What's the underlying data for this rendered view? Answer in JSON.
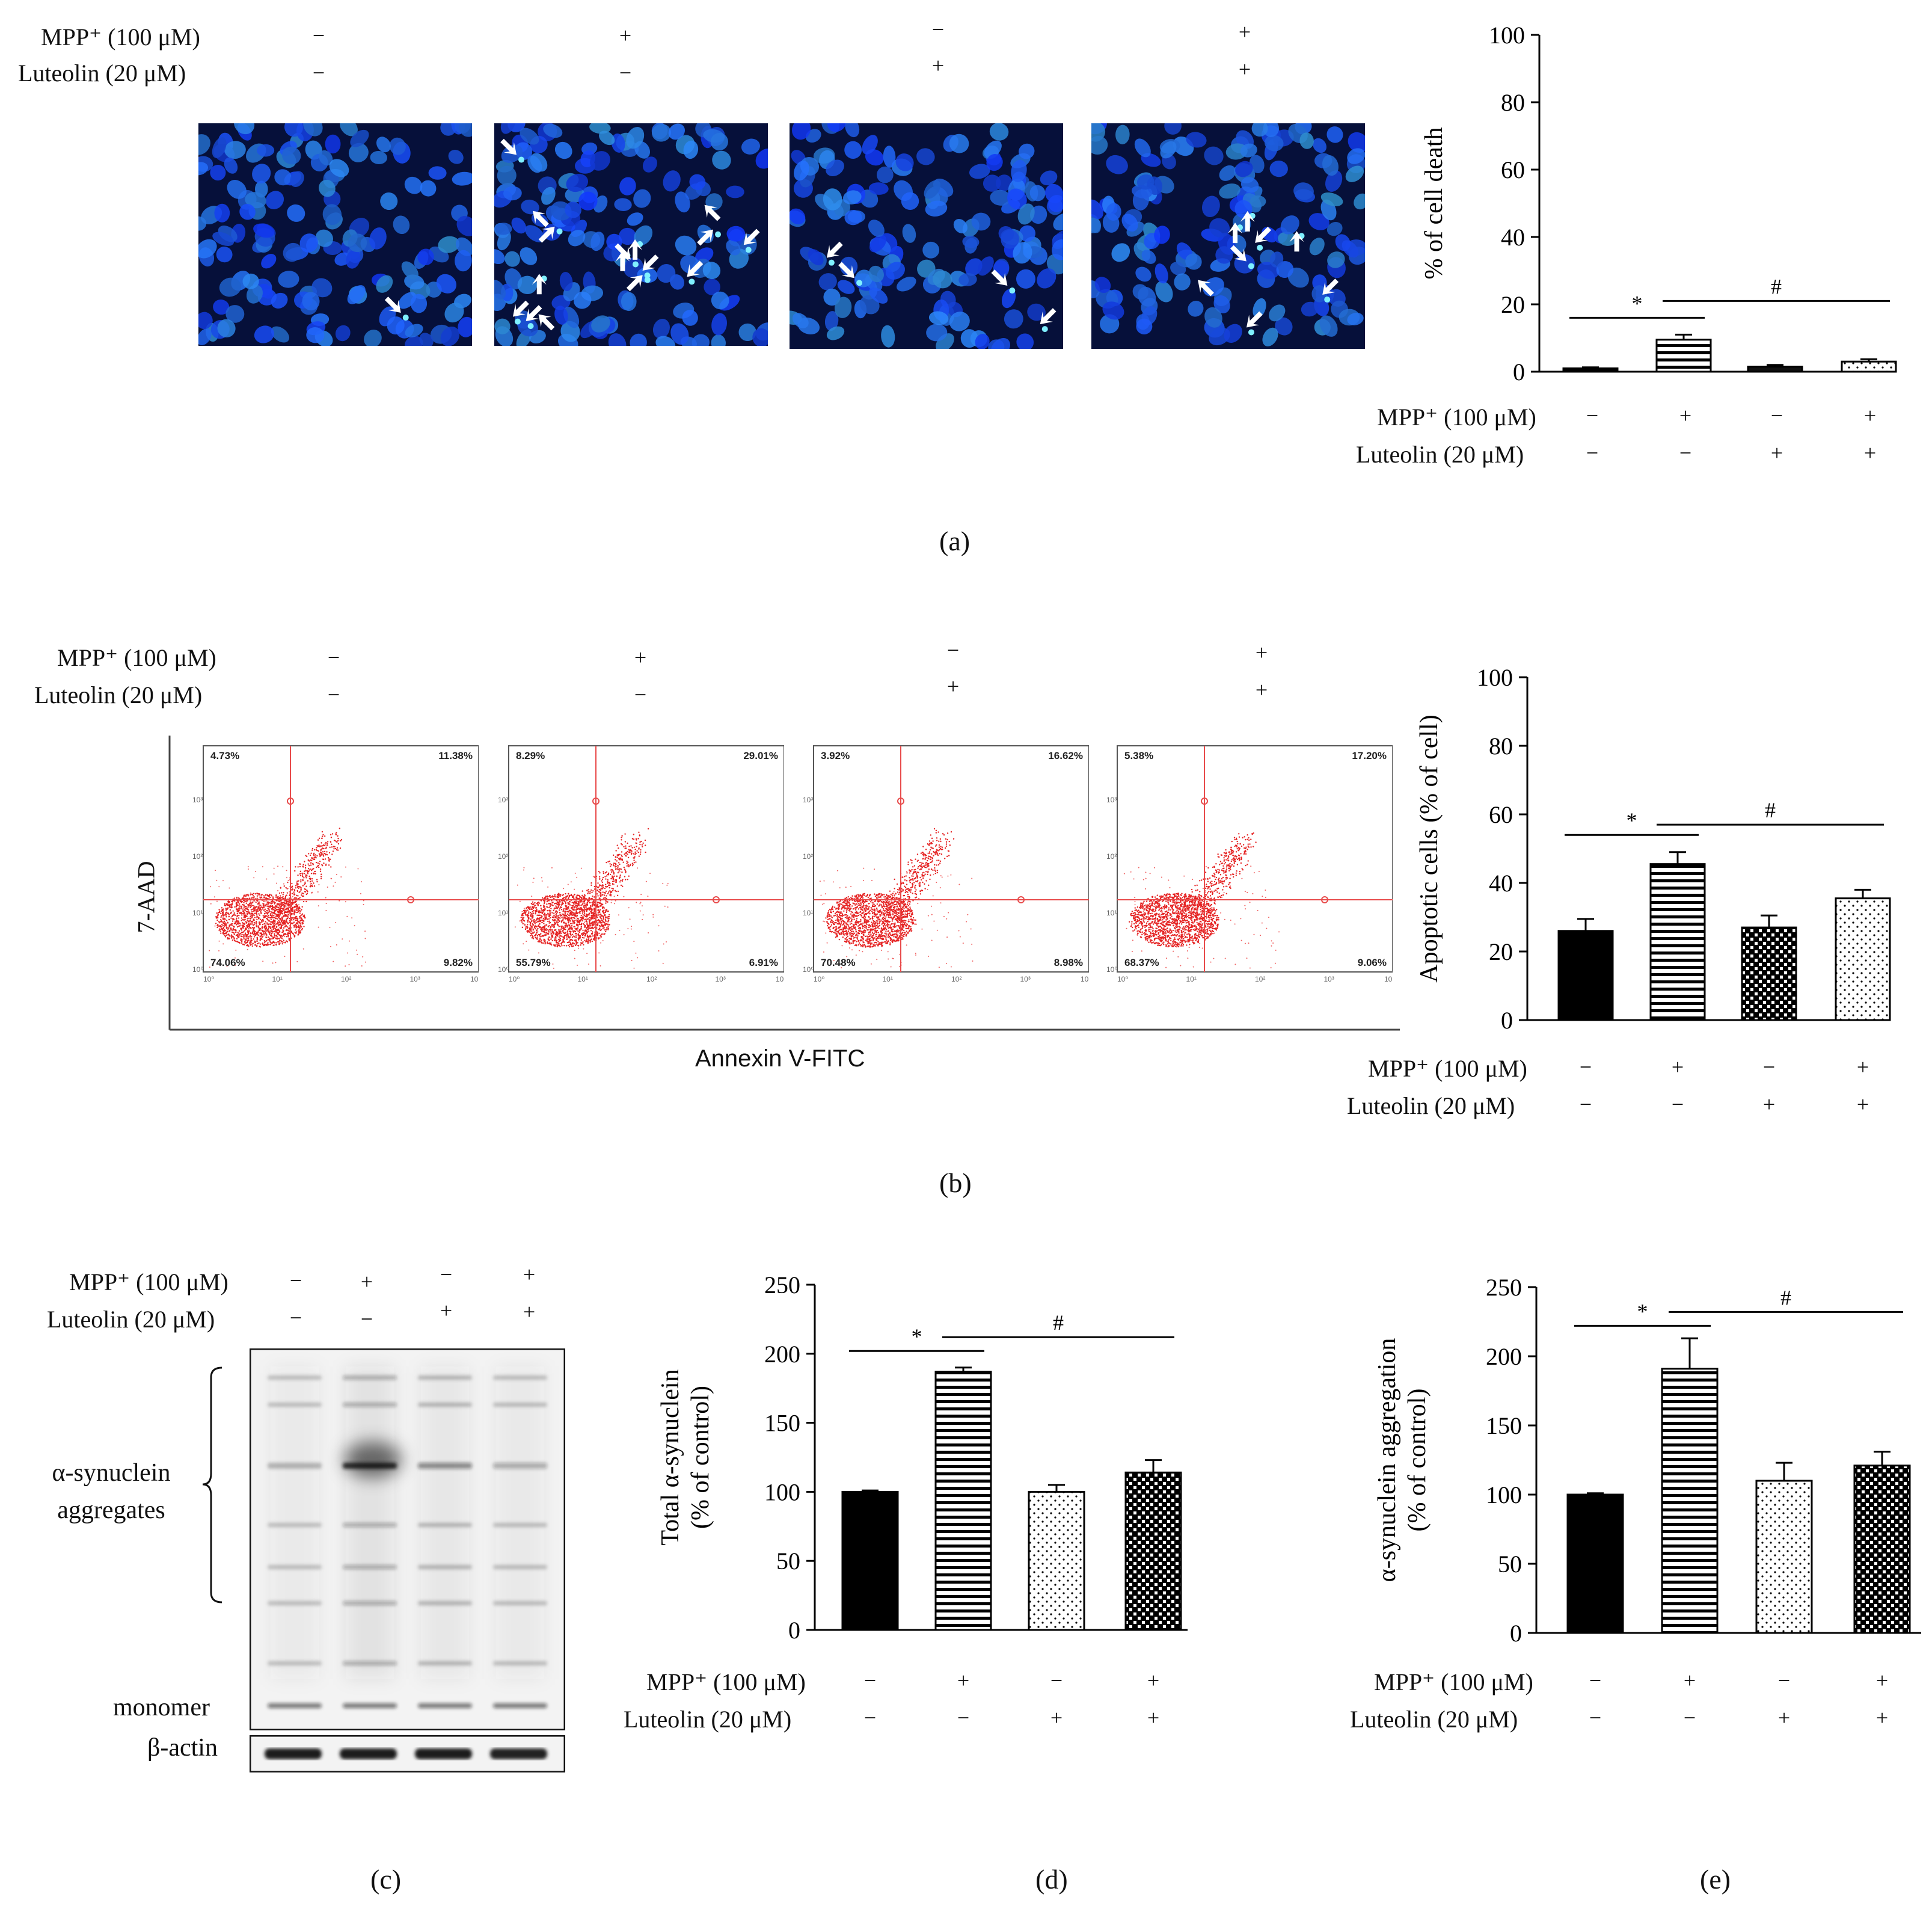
{
  "treatments": {
    "mpp_label": "MPP⁺ (100 μM)",
    "luteolin_label": "Luteolin (20 μM)",
    "mpp": [
      "−",
      "+",
      "−",
      "+"
    ],
    "luteolin": [
      "−",
      "−",
      "+",
      "+"
    ]
  },
  "panel_a": {
    "caption": "(a)",
    "micrographs": [
      {
        "apoptotic_arrows": 1
      },
      {
        "apoptotic_arrows": 16
      },
      {
        "apoptotic_arrows": 4
      },
      {
        "apoptotic_arrows": 8
      }
    ]
  },
  "panel_b": {
    "caption": "(b)",
    "flow_x_label": "Annexin V-FITC",
    "flow_y_label": "7-AAD",
    "flow_plots": [
      {
        "q_ul": "4.73%",
        "q_ur": "11.38%",
        "q_ll": "74.06%",
        "q_lr": "9.82%"
      },
      {
        "q_ul": "8.29%",
        "q_ur": "29.01%",
        "q_ll": "55.79%",
        "q_lr": "6.91%"
      },
      {
        "q_ul": "3.92%",
        "q_ur": "16.62%",
        "q_ll": "70.48%",
        "q_lr": "8.98%"
      },
      {
        "q_ul": "5.38%",
        "q_ur": "17.20%",
        "q_ll": "68.37%",
        "q_lr": "9.06%"
      }
    ]
  },
  "panel_c": {
    "caption": "(c)",
    "aggregates_label": "α-synuclein aggregates",
    "monomer_label": "monomer",
    "actin_label": "β-actin",
    "aggregate_band_intensity": [
      0.25,
      0.85,
      0.45,
      0.3
    ]
  },
  "panel_d": {
    "caption": "(d)"
  },
  "panel_e": {
    "caption": "(e)"
  },
  "chart_data": [
    {
      "panel": "a",
      "type": "bar",
      "categories": [
        "−/−",
        "+/−",
        "−/+",
        "+/+"
      ],
      "values": [
        1,
        9.5,
        1.5,
        3
      ],
      "errors": [
        0.3,
        1.5,
        0.5,
        0.7
      ],
      "ylabel": "% of cell death",
      "ylim": [
        0,
        100
      ],
      "yticks": [
        0,
        20,
        40,
        60,
        80,
        100
      ],
      "fills": [
        "solid",
        "hlines",
        "solid-light",
        "dots"
      ],
      "significance": [
        {
          "from": 0,
          "to": 1,
          "label": "*",
          "y": 16
        },
        {
          "from": 1,
          "to": 3,
          "label": "#",
          "y": 21
        }
      ]
    },
    {
      "panel": "b",
      "type": "bar",
      "categories": [
        "−/−",
        "+/−",
        "−/+",
        "+/+"
      ],
      "values": [
        26,
        45.5,
        27,
        35.5
      ],
      "errors": [
        3.5,
        3.5,
        3.5,
        2.5
      ],
      "ylabel": "Apoptotic cells (% of cell)",
      "ylim": [
        0,
        100
      ],
      "yticks": [
        0,
        20,
        40,
        60,
        80,
        100
      ],
      "fills": [
        "solid",
        "hlines",
        "checker",
        "dots"
      ],
      "significance": [
        {
          "from": 0,
          "to": 1,
          "label": "*",
          "y": 54
        },
        {
          "from": 1,
          "to": 3,
          "label": "#",
          "y": 57
        }
      ]
    },
    {
      "panel": "d",
      "type": "bar",
      "categories": [
        "−/−",
        "+/−",
        "−/+",
        "+/+"
      ],
      "values": [
        100,
        187,
        100,
        114
      ],
      "errors": [
        1,
        3,
        5,
        9
      ],
      "ylabel": "Total α-synuclein (% of control)",
      "ylim": [
        0,
        250
      ],
      "yticks": [
        0,
        50,
        100,
        150,
        200,
        250
      ],
      "fills": [
        "solid",
        "hlines",
        "dots",
        "checker"
      ],
      "significance": [
        {
          "from": 0,
          "to": 1,
          "label": "*",
          "y": 202
        },
        {
          "from": 1,
          "to": 3,
          "label": "#",
          "y": 212
        }
      ]
    },
    {
      "panel": "e",
      "type": "bar",
      "categories": [
        "−/−",
        "+/−",
        "−/+",
        "+/+"
      ],
      "values": [
        100,
        191,
        110,
        121
      ],
      "errors": [
        1,
        22,
        13,
        10
      ],
      "ylabel": "α-synuclein aggregation (% of control)",
      "ylim": [
        0,
        250
      ],
      "yticks": [
        0,
        50,
        100,
        150,
        200,
        250
      ],
      "fills": [
        "solid",
        "hlines",
        "dots",
        "checker"
      ],
      "significance": [
        {
          "from": 0,
          "to": 1,
          "label": "*",
          "y": 222
        },
        {
          "from": 1,
          "to": 3,
          "label": "#",
          "y": 232
        }
      ]
    }
  ]
}
